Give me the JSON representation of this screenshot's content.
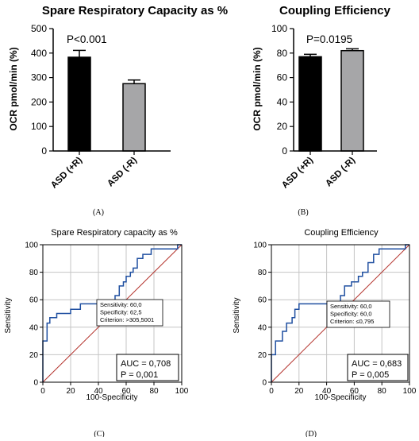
{
  "panel_labels": {
    "a": "(A)",
    "b": "(B)",
    "c": "(C)",
    "d": "(D)"
  },
  "chart_data": [
    {
      "type": "bar",
      "panel": "A",
      "title": "Spare Respiratory Capacity as %",
      "ylabel": "OCR pmol/min (%)",
      "xlabel": "",
      "categories": [
        "ASD (+R)",
        "ASD (-R)"
      ],
      "values": [
        383,
        275
      ],
      "errors": [
        28,
        15
      ],
      "bar_colors": [
        "#000000",
        "#a6a6a8"
      ],
      "ylim": [
        0,
        500
      ],
      "yticks": [
        "0",
        "100",
        "200",
        "300",
        "400",
        "500"
      ],
      "annotation": "P<0.001",
      "grid": false
    },
    {
      "type": "bar",
      "panel": "B",
      "title": "Coupling Efficiency",
      "ylabel": "OCR pmol/min (%)",
      "xlabel": "",
      "categories": [
        "ASD (+R)",
        "ASD (-R)"
      ],
      "values": [
        77,
        82
      ],
      "errors": [
        2,
        1.5
      ],
      "bar_colors": [
        "#000000",
        "#a6a6a8"
      ],
      "ylim": [
        0,
        100
      ],
      "yticks": [
        "0",
        "20",
        "40",
        "60",
        "80",
        "100"
      ],
      "annotation": "P=0.0195",
      "grid": false
    },
    {
      "type": "line",
      "panel": "C",
      "title": "Spare Respiratory capacity as %",
      "xlabel": "100-Specificity",
      "ylabel": "Sensitivity",
      "xlim": [
        0,
        100
      ],
      "ylim": [
        0,
        100
      ],
      "xticks": [
        "0",
        "20",
        "40",
        "60",
        "80",
        "100"
      ],
      "yticks": [
        "0",
        "20",
        "40",
        "60",
        "80",
        "100"
      ],
      "grid": true,
      "roc": [
        [
          0,
          0
        ],
        [
          0,
          30
        ],
        [
          3,
          30
        ],
        [
          3,
          43
        ],
        [
          5,
          43
        ],
        [
          5,
          47
        ],
        [
          10,
          47
        ],
        [
          10,
          50
        ],
        [
          20,
          50
        ],
        [
          20,
          53
        ],
        [
          27,
          53
        ],
        [
          27,
          57
        ],
        [
          52,
          57
        ],
        [
          52,
          63
        ],
        [
          55,
          63
        ],
        [
          55,
          70
        ],
        [
          58,
          70
        ],
        [
          58,
          73
        ],
        [
          60,
          73
        ],
        [
          60,
          77
        ],
        [
          63,
          77
        ],
        [
          63,
          80
        ],
        [
          65,
          80
        ],
        [
          65,
          83
        ],
        [
          68,
          83
        ],
        [
          68,
          90
        ],
        [
          72,
          90
        ],
        [
          72,
          93
        ],
        [
          78,
          93
        ],
        [
          78,
          97
        ],
        [
          97,
          97
        ],
        [
          97,
          100
        ],
        [
          100,
          100
        ]
      ],
      "reference_line": [
        [
          0,
          0
        ],
        [
          100,
          100
        ]
      ],
      "criterion_box": [
        "Sensitivity: 60,0",
        "Specificity: 62,5",
        "Criterion: >305,5001"
      ],
      "auc_box": [
        "AUC = 0,708",
        "P = 0,001"
      ]
    },
    {
      "type": "line",
      "panel": "D",
      "title": "Coupling Efficiency",
      "xlabel": "100-Specificity",
      "ylabel": "Sensitivity",
      "xlim": [
        0,
        100
      ],
      "ylim": [
        0,
        100
      ],
      "xticks": [
        "0",
        "20",
        "40",
        "60",
        "80",
        "100"
      ],
      "yticks": [
        "0",
        "20",
        "40",
        "60",
        "80",
        "100"
      ],
      "grid": true,
      "roc": [
        [
          0,
          0
        ],
        [
          0,
          20
        ],
        [
          3,
          20
        ],
        [
          3,
          30
        ],
        [
          8,
          30
        ],
        [
          8,
          37
        ],
        [
          11,
          37
        ],
        [
          11,
          43
        ],
        [
          15,
          43
        ],
        [
          15,
          47
        ],
        [
          17,
          47
        ],
        [
          17,
          53
        ],
        [
          20,
          53
        ],
        [
          20,
          57
        ],
        [
          50,
          57
        ],
        [
          50,
          63
        ],
        [
          53,
          63
        ],
        [
          53,
          70
        ],
        [
          58,
          70
        ],
        [
          58,
          73
        ],
        [
          63,
          73
        ],
        [
          63,
          77
        ],
        [
          66,
          77
        ],
        [
          66,
          80
        ],
        [
          70,
          80
        ],
        [
          70,
          87
        ],
        [
          74,
          87
        ],
        [
          74,
          93
        ],
        [
          78,
          93
        ],
        [
          78,
          97
        ],
        [
          97,
          97
        ],
        [
          97,
          100
        ],
        [
          100,
          100
        ]
      ],
      "reference_line": [
        [
          0,
          0
        ],
        [
          100,
          100
        ]
      ],
      "criterion_box": [
        "Sensitivity: 60,0",
        "Specificity: 60,0",
        "Criterion: ≤0,795"
      ],
      "auc_box": [
        "AUC = 0,683",
        "P = 0,005"
      ]
    }
  ]
}
